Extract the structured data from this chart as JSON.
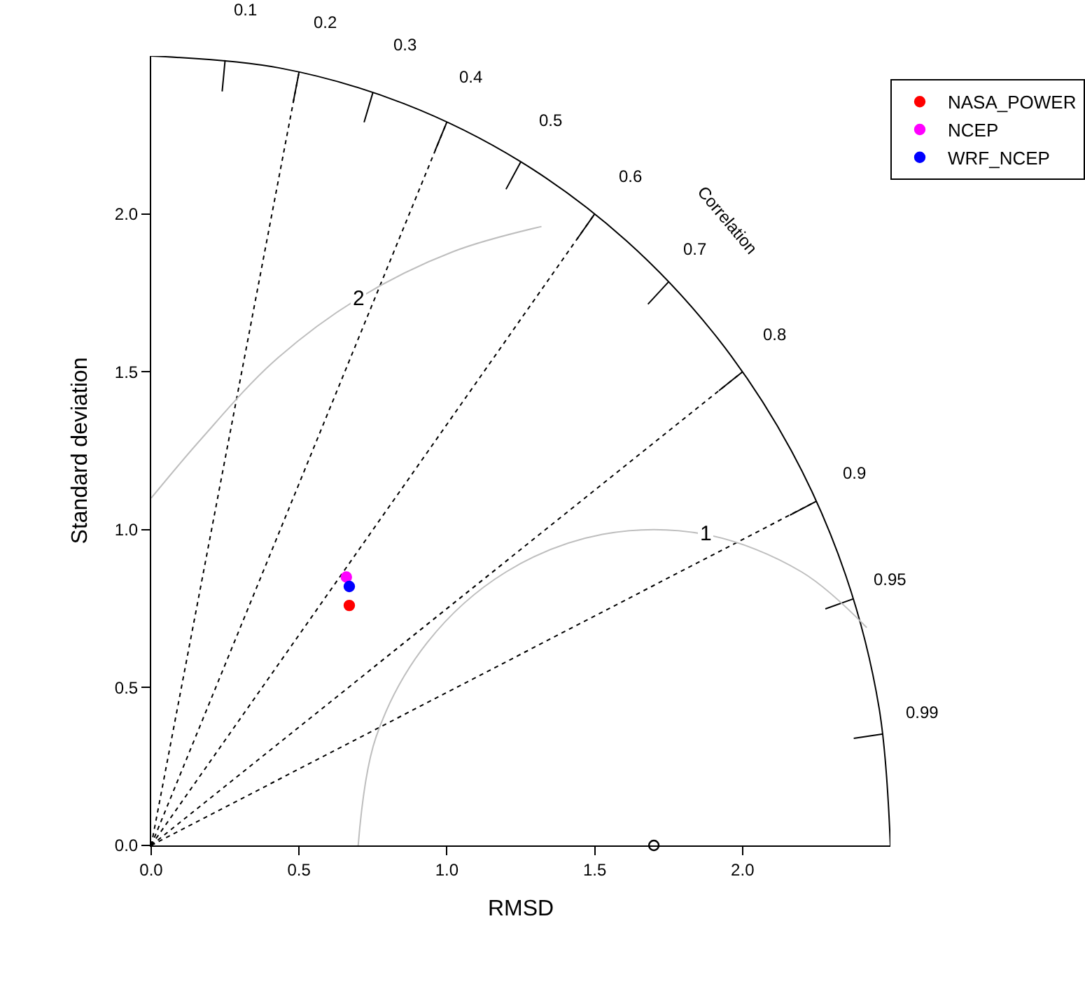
{
  "chart_data": {
    "type": "scatter",
    "xlabel": "RMSD",
    "ylabel": "Standard deviation",
    "xlim": [
      0,
      2.5
    ],
    "ylim": [
      0,
      2.5
    ],
    "xticks": [
      {
        "value": 0,
        "label": "0.0"
      },
      0.5,
      {
        "value": 1,
        "label": "1.0"
      },
      1.5,
      {
        "value": 2,
        "label": "2.0"
      }
    ],
    "yticks": [
      {
        "value": 0,
        "label": "0.0"
      },
      0.5,
      {
        "value": 1,
        "label": "1.0"
      },
      1.5,
      {
        "value": 2,
        "label": "2.0"
      }
    ],
    "legend": "top right",
    "marker": "circle",
    "annotations": [
      "Correlation"
    ],
    "series": [
      {
        "type": "line",
        "color": "#000000",
        "line_style": "solid",
        "marker": "none",
        "x": [
          2.5,
          2.462,
          2.349,
          2.165,
          1.915,
          1.607,
          1.25,
          0.855,
          0.434,
          0
        ],
        "values": [
          0,
          0.434,
          0.855,
          1.25,
          1.607,
          1.915,
          2.165,
          2.349,
          2.462,
          2.5
        ]
      },
      {
        "type": "line",
        "name": "0.1",
        "color": "#000000",
        "line_style": "solid",
        "marker": "none",
        "x": [
          0.25,
          0.24
        ],
        "values": [
          2.487,
          2.388
        ]
      },
      {
        "type": "line",
        "name": "0.2",
        "color": "#000000",
        "line_style": "solid",
        "marker": "none",
        "x": [
          0.5,
          0.48
        ],
        "values": [
          2.449,
          2.352
        ]
      },
      {
        "type": "line",
        "name": "0.3",
        "color": "#000000",
        "line_style": "solid",
        "marker": "none",
        "x": [
          0.75,
          0.72
        ],
        "values": [
          2.385,
          2.29
        ]
      },
      {
        "type": "line",
        "name": "0.4",
        "color": "#000000",
        "line_style": "solid",
        "marker": "none",
        "x": [
          1.0,
          0.96
        ],
        "values": [
          2.291,
          2.2
        ]
      },
      {
        "type": "line",
        "name": "0.5",
        "color": "#000000",
        "line_style": "solid",
        "marker": "none",
        "x": [
          1.25,
          1.2
        ],
        "values": [
          2.165,
          2.078
        ]
      },
      {
        "type": "line",
        "name": "0.6",
        "color": "#000000",
        "line_style": "solid",
        "marker": "none",
        "x": [
          1.5,
          1.44
        ],
        "values": [
          2.0,
          1.92
        ]
      },
      {
        "type": "line",
        "name": "0.7",
        "color": "#000000",
        "line_style": "solid",
        "marker": "none",
        "x": [
          1.75,
          1.68
        ],
        "values": [
          1.785,
          1.714
        ]
      },
      {
        "type": "line",
        "name": "0.8",
        "color": "#000000",
        "line_style": "solid",
        "marker": "none",
        "x": [
          2.0,
          1.92
        ],
        "values": [
          1.5,
          1.44
        ]
      },
      {
        "type": "line",
        "name": "0.9",
        "color": "#000000",
        "line_style": "solid",
        "marker": "none",
        "x": [
          2.25,
          2.16
        ],
        "values": [
          1.09,
          1.046
        ]
      },
      {
        "type": "line",
        "name": "0.95",
        "color": "#000000",
        "line_style": "solid",
        "marker": "none",
        "x": [
          2.375,
          2.28
        ],
        "values": [
          0.781,
          0.749
        ]
      },
      {
        "type": "line",
        "name": "0.99",
        "color": "#000000",
        "line_style": "solid",
        "marker": "none",
        "x": [
          2.475,
          2.376
        ],
        "values": [
          0.353,
          0.339
        ]
      },
      {
        "type": "line",
        "color": "#000000",
        "line_style": "dotted",
        "marker": "none",
        "x": [
          0,
          0.5
        ],
        "values": [
          0,
          2.449
        ]
      },
      {
        "type": "line",
        "color": "#000000",
        "line_style": "dotted",
        "marker": "none",
        "x": [
          0,
          1.0
        ],
        "values": [
          0,
          2.291
        ]
      },
      {
        "type": "line",
        "color": "#000000",
        "line_style": "dotted",
        "marker": "none",
        "x": [
          0,
          1.5
        ],
        "values": [
          0,
          2.0
        ]
      },
      {
        "type": "line",
        "color": "#000000",
        "line_style": "dotted",
        "marker": "none",
        "x": [
          0,
          2.0
        ],
        "values": [
          0,
          1.5
        ]
      },
      {
        "type": "line",
        "color": "#000000",
        "line_style": "dotted",
        "marker": "none",
        "x": [
          0,
          2.25
        ],
        "values": [
          0,
          1.09
        ]
      },
      {
        "type": "line",
        "name": "1",
        "color": "#bebebe",
        "line_style": "solid",
        "marker": "none",
        "x": [
          2.42,
          2.2,
          1.874,
          1.526,
          1.2,
          0.934,
          0.76,
          0.7
        ],
        "values": [
          0.69,
          0.866,
          0.985,
          0.985,
          0.866,
          0.643,
          0.342,
          0
        ]
      },
      {
        "type": "line",
        "name": "2",
        "color": "#bebebe",
        "line_style": "solid",
        "marker": "none",
        "x": [
          1.32,
          1.02,
          0.7,
          0.414,
          0.168,
          0
        ],
        "values": [
          1.96,
          1.88,
          1.732,
          1.532,
          1.286,
          1.1
        ]
      },
      {
        "color": "#000000",
        "marker": "open circle",
        "x": [
          1.7
        ],
        "values": [
          0
        ]
      },
      {
        "name": "NASA_POWER",
        "color": "#ff0000",
        "x": [
          0.67
        ],
        "values": [
          0.76
        ]
      },
      {
        "name": "NCEP",
        "color": "#ff00ff",
        "x": [
          0.66
        ],
        "values": [
          0.85
        ]
      },
      {
        "name": "WRF_NCEP",
        "color": "#0000ff",
        "x": [
          0.67
        ],
        "values": [
          0.82
        ]
      }
    ]
  }
}
